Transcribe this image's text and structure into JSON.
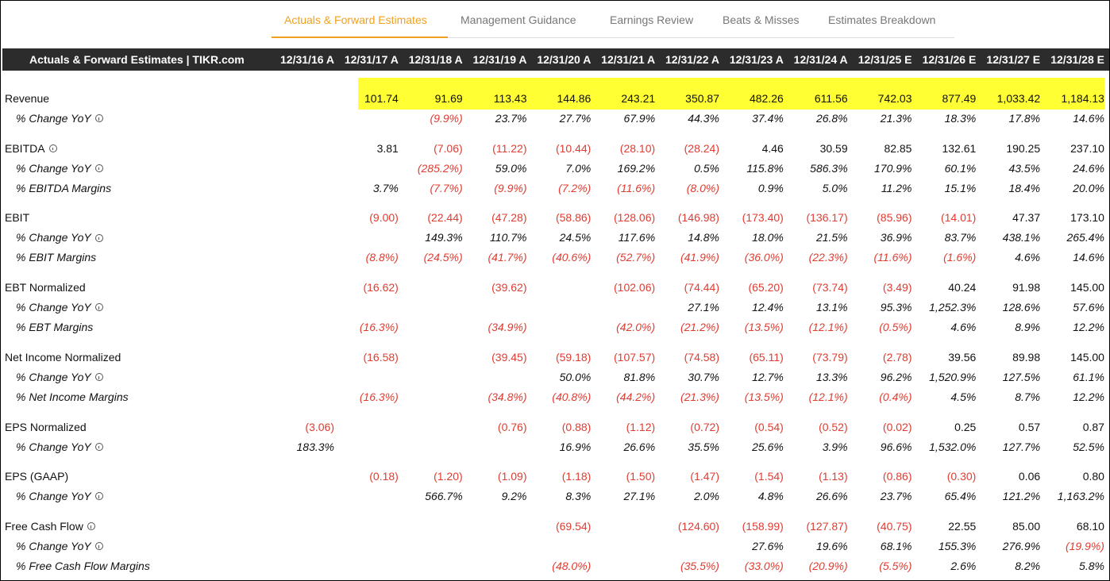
{
  "tabs": [
    "Actuals & Forward Estimates",
    "Management Guidance",
    "Earnings Review",
    "Beats & Misses",
    "Estimates Breakdown"
  ],
  "active_tab": 0,
  "table": {
    "title": "Actuals & Forward Estimates | TIKR.com",
    "columns": [
      "12/31/16 A",
      "12/31/17 A",
      "12/31/18 A",
      "12/31/19 A",
      "12/31/20 A",
      "12/31/21 A",
      "12/31/22 A",
      "12/31/23 A",
      "12/31/24 A",
      "12/31/25 E",
      "12/31/26 E",
      "12/31/27 E",
      "12/31/28 E"
    ],
    "groups": [
      {
        "rows": [
          {
            "label": "Revenue",
            "values": [
              null,
              "101.74",
              "91.69",
              "113.43",
              "144.86",
              "243.21",
              "350.87",
              "482.26",
              "611.56",
              "742.03",
              "877.49",
              "1,033.42",
              "1,184.13"
            ]
          },
          {
            "label": "% Change YoY",
            "sub": true,
            "info": true,
            "values": [
              null,
              null,
              "(9.9%)",
              "23.7%",
              "27.7%",
              "67.9%",
              "44.3%",
              "37.4%",
              "26.8%",
              "21.3%",
              "18.3%",
              "17.8%",
              "14.6%"
            ]
          }
        ]
      },
      {
        "rows": [
          {
            "label": "EBITDA",
            "info": true,
            "values": [
              null,
              "3.81",
              "(7.06)",
              "(11.22)",
              "(10.44)",
              "(28.10)",
              "(28.24)",
              "4.46",
              "30.59",
              "82.85",
              "132.61",
              "190.25",
              "237.10"
            ]
          },
          {
            "label": "% Change YoY",
            "sub": true,
            "info": true,
            "values": [
              null,
              null,
              "(285.2%)",
              "59.0%",
              "7.0%",
              "169.2%",
              "0.5%",
              "115.8%",
              "586.3%",
              "170.9%",
              "60.1%",
              "43.5%",
              "24.6%"
            ]
          },
          {
            "label": "% EBITDA Margins",
            "sub": true,
            "values": [
              null,
              "3.7%",
              "(7.7%)",
              "(9.9%)",
              "(7.2%)",
              "(11.6%)",
              "(8.0%)",
              "0.9%",
              "5.0%",
              "11.2%",
              "15.1%",
              "18.4%",
              "20.0%"
            ]
          }
        ]
      },
      {
        "rows": [
          {
            "label": "EBIT",
            "values": [
              null,
              "(9.00)",
              "(22.44)",
              "(47.28)",
              "(58.86)",
              "(128.06)",
              "(146.98)",
              "(173.40)",
              "(136.17)",
              "(85.96)",
              "(14.01)",
              "47.37",
              "173.10"
            ]
          },
          {
            "label": "% Change YoY",
            "sub": true,
            "info": true,
            "values": [
              null,
              null,
              "149.3%",
              "110.7%",
              "24.5%",
              "117.6%",
              "14.8%",
              "18.0%",
              "21.5%",
              "36.9%",
              "83.7%",
              "438.1%",
              "265.4%"
            ]
          },
          {
            "label": "% EBIT Margins",
            "sub": true,
            "values": [
              null,
              "(8.8%)",
              "(24.5%)",
              "(41.7%)",
              "(40.6%)",
              "(52.7%)",
              "(41.9%)",
              "(36.0%)",
              "(22.3%)",
              "(11.6%)",
              "(1.6%)",
              "4.6%",
              "14.6%"
            ]
          }
        ]
      },
      {
        "rows": [
          {
            "label": "EBT Normalized",
            "values": [
              null,
              "(16.62)",
              null,
              "(39.62)",
              null,
              "(102.06)",
              "(74.44)",
              "(65.20)",
              "(73.74)",
              "(3.49)",
              "40.24",
              "91.98",
              "145.00"
            ]
          },
          {
            "label": "% Change YoY",
            "sub": true,
            "info": true,
            "values": [
              null,
              null,
              null,
              null,
              null,
              null,
              "27.1%",
              "12.4%",
              "13.1%",
              "95.3%",
              "1,252.3%",
              "128.6%",
              "57.6%"
            ]
          },
          {
            "label": "% EBT Margins",
            "sub": true,
            "values": [
              null,
              "(16.3%)",
              null,
              "(34.9%)",
              null,
              "(42.0%)",
              "(21.2%)",
              "(13.5%)",
              "(12.1%)",
              "(0.5%)",
              "4.6%",
              "8.9%",
              "12.2%"
            ]
          }
        ]
      },
      {
        "rows": [
          {
            "label": "Net Income Normalized",
            "values": [
              null,
              "(16.58)",
              null,
              "(39.45)",
              "(59.18)",
              "(107.57)",
              "(74.58)",
              "(65.11)",
              "(73.79)",
              "(2.78)",
              "39.56",
              "89.98",
              "145.00"
            ]
          },
          {
            "label": "% Change YoY",
            "sub": true,
            "info": true,
            "values": [
              null,
              null,
              null,
              null,
              "50.0%",
              "81.8%",
              "30.7%",
              "12.7%",
              "13.3%",
              "96.2%",
              "1,520.9%",
              "127.5%",
              "61.1%"
            ]
          },
          {
            "label": "% Net Income Margins",
            "sub": true,
            "values": [
              null,
              "(16.3%)",
              null,
              "(34.8%)",
              "(40.8%)",
              "(44.2%)",
              "(21.3%)",
              "(13.5%)",
              "(12.1%)",
              "(0.4%)",
              "4.5%",
              "8.7%",
              "12.2%"
            ]
          }
        ]
      },
      {
        "rows": [
          {
            "label": "EPS Normalized",
            "values": [
              "(3.06)",
              null,
              null,
              "(0.76)",
              "(0.88)",
              "(1.12)",
              "(0.72)",
              "(0.54)",
              "(0.52)",
              "(0.02)",
              "0.25",
              "0.57",
              "0.87"
            ]
          },
          {
            "label": "% Change YoY",
            "sub": true,
            "info": true,
            "values": [
              "183.3%",
              null,
              null,
              null,
              "16.9%",
              "26.6%",
              "35.5%",
              "25.6%",
              "3.9%",
              "96.6%",
              "1,532.0%",
              "127.7%",
              "52.5%"
            ]
          }
        ]
      },
      {
        "rows": [
          {
            "label": "EPS (GAAP)",
            "values": [
              null,
              "(0.18)",
              "(1.20)",
              "(1.09)",
              "(1.18)",
              "(1.50)",
              "(1.47)",
              "(1.54)",
              "(1.13)",
              "(0.86)",
              "(0.30)",
              "0.06",
              "0.80"
            ]
          },
          {
            "label": "% Change YoY",
            "sub": true,
            "info": true,
            "values": [
              null,
              null,
              "566.7%",
              "9.2%",
              "8.3%",
              "27.1%",
              "2.0%",
              "4.8%",
              "26.6%",
              "23.7%",
              "65.4%",
              "121.2%",
              "1,163.2%"
            ]
          }
        ]
      },
      {
        "rows": [
          {
            "label": "Free Cash Flow",
            "info": true,
            "values": [
              null,
              null,
              null,
              null,
              "(69.54)",
              null,
              "(124.60)",
              "(158.99)",
              "(127.87)",
              "(40.75)",
              "22.55",
              "85.00",
              "68.10"
            ]
          },
          {
            "label": "% Change YoY",
            "sub": true,
            "info": true,
            "values": [
              null,
              null,
              null,
              null,
              null,
              null,
              null,
              "27.6%",
              "19.6%",
              "68.1%",
              "155.3%",
              "276.9%",
              "(19.9%)"
            ]
          },
          {
            "label": "% Free Cash Flow Margins",
            "sub": true,
            "values": [
              null,
              null,
              null,
              null,
              "(48.0%)",
              null,
              "(35.5%)",
              "(33.0%)",
              "(20.9%)",
              "(5.5%)",
              "2.6%",
              "8.2%",
              "5.8%"
            ]
          }
        ]
      }
    ]
  }
}
